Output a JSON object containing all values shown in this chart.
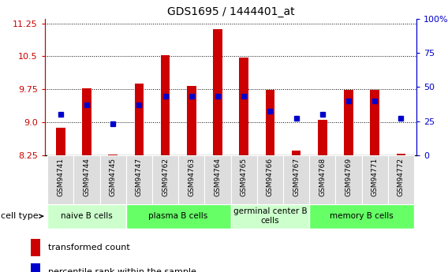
{
  "title": "GDS1695 / 1444401_at",
  "samples": [
    "GSM94741",
    "GSM94744",
    "GSM94745",
    "GSM94747",
    "GSM94762",
    "GSM94763",
    "GSM94764",
    "GSM94765",
    "GSM94766",
    "GSM94767",
    "GSM94768",
    "GSM94769",
    "GSM94771",
    "GSM94772"
  ],
  "transformed_count": [
    8.88,
    9.78,
    8.27,
    9.88,
    10.52,
    9.82,
    11.12,
    10.48,
    9.74,
    8.35,
    9.05,
    9.73,
    9.73,
    8.28
  ],
  "percentile_rank": [
    30,
    37,
    23,
    37,
    43,
    43,
    43,
    43,
    32,
    27,
    30,
    40,
    40,
    27
  ],
  "ylim_left": [
    8.25,
    11.35
  ],
  "ylim_right": [
    0,
    100
  ],
  "yticks_left": [
    8.25,
    9.0,
    9.75,
    10.5,
    11.25
  ],
  "yticks_right": [
    0,
    25,
    50,
    75,
    100
  ],
  "cell_groups": [
    {
      "label": "naive B cells",
      "start": 0,
      "end": 3,
      "color": "#ccffcc"
    },
    {
      "label": "plasma B cells",
      "start": 3,
      "end": 7,
      "color": "#66ff66"
    },
    {
      "label": "germinal center B\ncells",
      "start": 7,
      "end": 10,
      "color": "#ccffcc"
    },
    {
      "label": "memory B cells",
      "start": 10,
      "end": 14,
      "color": "#66ff66"
    }
  ],
  "bar_color": "#cc0000",
  "dot_color": "#0000cc",
  "bar_bottom": 8.25,
  "tick_label_color_left": "#cc0000",
  "tick_label_color_right": "#0000cc",
  "legend_items": [
    {
      "label": "transformed count",
      "color": "#cc0000"
    },
    {
      "label": "percentile rank within the sample",
      "color": "#0000cc"
    }
  ]
}
